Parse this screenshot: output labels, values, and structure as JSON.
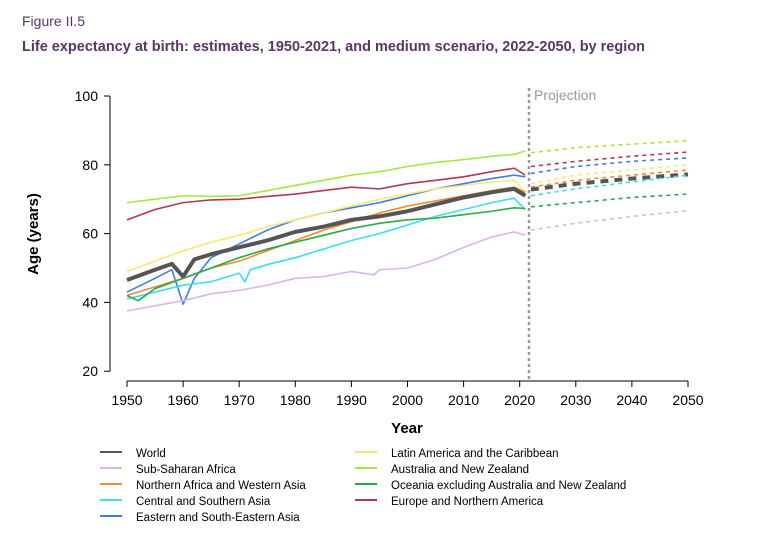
{
  "figure_label": "Figure II.5",
  "chart_data": {
    "type": "line",
    "title": "Life expectancy at birth: estimates, 1950-2021, and medium scenario, 2022-2050, by region",
    "xlabel": "Year",
    "ylabel": "Age (years)",
    "xlim": [
      1950,
      2050
    ],
    "ylim": [
      20,
      100
    ],
    "xticks": [
      1950,
      1960,
      1970,
      1980,
      1990,
      2000,
      2010,
      2020,
      2030,
      2040,
      2050
    ],
    "yticks": [
      20,
      40,
      60,
      80,
      100
    ],
    "projection_start": 2022,
    "projection_label": "Projection",
    "legend_position": "bottom",
    "series": [
      {
        "name": "World",
        "color": "#555555",
        "est": [
          [
            1950,
            46.5
          ],
          [
            1955,
            49.5
          ],
          [
            1958,
            51.2
          ],
          [
            1960,
            47.5
          ],
          [
            1962,
            52.5
          ],
          [
            1965,
            54
          ],
          [
            1970,
            56
          ],
          [
            1975,
            58
          ],
          [
            1980,
            60.5
          ],
          [
            1985,
            62
          ],
          [
            1990,
            64
          ],
          [
            1995,
            65
          ],
          [
            2000,
            66.5
          ],
          [
            2005,
            68.5
          ],
          [
            2010,
            70.5
          ],
          [
            2015,
            72
          ],
          [
            2019,
            73
          ],
          [
            2021,
            71
          ]
        ],
        "proj": [
          [
            2022,
            72.8
          ],
          [
            2030,
            74.5
          ],
          [
            2040,
            76
          ],
          [
            2050,
            77.2
          ]
        ]
      },
      {
        "name": "Sub-Saharan Africa",
        "color": "#dcb4f0",
        "est": [
          [
            1950,
            37.5
          ],
          [
            1955,
            39
          ],
          [
            1960,
            40.5
          ],
          [
            1965,
            42.5
          ],
          [
            1970,
            43.5
          ],
          [
            1975,
            45
          ],
          [
            1980,
            47
          ],
          [
            1985,
            47.5
          ],
          [
            1990,
            49
          ],
          [
            1994,
            48
          ],
          [
            1995,
            49.5
          ],
          [
            2000,
            50
          ],
          [
            2005,
            52.5
          ],
          [
            2010,
            56
          ],
          [
            2015,
            59
          ],
          [
            2019,
            60.5
          ],
          [
            2021,
            59.5
          ]
        ],
        "proj": [
          [
            2022,
            61
          ],
          [
            2030,
            63
          ],
          [
            2040,
            65
          ],
          [
            2050,
            66.7
          ]
        ]
      },
      {
        "name": "Northern Africa and Western Asia",
        "color": "#f08c30",
        "est": [
          [
            1950,
            42
          ],
          [
            1955,
            44.5
          ],
          [
            1960,
            47
          ],
          [
            1965,
            50
          ],
          [
            1970,
            52
          ],
          [
            1975,
            55
          ],
          [
            1980,
            58
          ],
          [
            1985,
            61
          ],
          [
            1990,
            63.5
          ],
          [
            1995,
            66
          ],
          [
            2000,
            68
          ],
          [
            2005,
            69.5
          ],
          [
            2010,
            71
          ],
          [
            2015,
            72.5
          ],
          [
            2019,
            73.5
          ],
          [
            2021,
            72
          ]
        ],
        "proj": [
          [
            2022,
            73.5
          ],
          [
            2030,
            75.5
          ],
          [
            2040,
            77
          ],
          [
            2050,
            78.5
          ]
        ]
      },
      {
        "name": "Central and Southern Asia",
        "color": "#3ddcf0",
        "est": [
          [
            1950,
            41
          ],
          [
            1955,
            43
          ],
          [
            1960,
            45
          ],
          [
            1965,
            46
          ],
          [
            1970,
            48.5
          ],
          [
            1971,
            46
          ],
          [
            1972,
            49.5
          ],
          [
            1975,
            51
          ],
          [
            1980,
            53
          ],
          [
            1985,
            55.5
          ],
          [
            1990,
            58
          ],
          [
            1995,
            60
          ],
          [
            2000,
            62.5
          ],
          [
            2005,
            65
          ],
          [
            2010,
            67
          ],
          [
            2015,
            69
          ],
          [
            2019,
            70.3
          ],
          [
            2021,
            67
          ]
        ],
        "proj": [
          [
            2022,
            71
          ],
          [
            2030,
            73
          ],
          [
            2040,
            75
          ],
          [
            2050,
            77
          ]
        ]
      },
      {
        "name": "Eastern and South-Eastern Asia",
        "color": "#3c7fe0",
        "est": [
          [
            1950,
            43
          ],
          [
            1955,
            47
          ],
          [
            1958,
            49.5
          ],
          [
            1960,
            39.5
          ],
          [
            1962,
            47
          ],
          [
            1965,
            53
          ],
          [
            1970,
            57
          ],
          [
            1975,
            61
          ],
          [
            1980,
            64
          ],
          [
            1985,
            66
          ],
          [
            1990,
            67.5
          ],
          [
            1995,
            69
          ],
          [
            2000,
            71
          ],
          [
            2005,
            73
          ],
          [
            2010,
            74.5
          ],
          [
            2015,
            76
          ],
          [
            2019,
            77
          ],
          [
            2021,
            76.5
          ]
        ],
        "proj": [
          [
            2022,
            77.5
          ],
          [
            2030,
            79.5
          ],
          [
            2040,
            81
          ],
          [
            2050,
            82
          ]
        ]
      },
      {
        "name": "Latin America and the Caribbean",
        "color": "#f8e87a",
        "est": [
          [
            1950,
            49
          ],
          [
            1955,
            52
          ],
          [
            1960,
            55
          ],
          [
            1965,
            57.5
          ],
          [
            1970,
            59.5
          ],
          [
            1975,
            62
          ],
          [
            1980,
            64
          ],
          [
            1985,
            66
          ],
          [
            1990,
            68
          ],
          [
            1995,
            70
          ],
          [
            2000,
            71.5
          ],
          [
            2005,
            73
          ],
          [
            2010,
            74
          ],
          [
            2015,
            75
          ],
          [
            2019,
            75.5
          ],
          [
            2021,
            72
          ]
        ],
        "proj": [
          [
            2022,
            74.5
          ],
          [
            2030,
            77
          ],
          [
            2040,
            78.5
          ],
          [
            2050,
            80
          ]
        ]
      },
      {
        "name": "Australia and New Zealand",
        "color": "#a8e63c",
        "est": [
          [
            1950,
            69
          ],
          [
            1955,
            70
          ],
          [
            1960,
            71
          ],
          [
            1965,
            70.8
          ],
          [
            1970,
            71
          ],
          [
            1975,
            72.5
          ],
          [
            1980,
            74
          ],
          [
            1985,
            75.5
          ],
          [
            1990,
            77
          ],
          [
            1995,
            78
          ],
          [
            2000,
            79.5
          ],
          [
            2005,
            80.7
          ],
          [
            2010,
            81.5
          ],
          [
            2015,
            82.5
          ],
          [
            2019,
            83
          ],
          [
            2021,
            84
          ]
        ],
        "proj": [
          [
            2022,
            83.5
          ],
          [
            2030,
            85
          ],
          [
            2040,
            86
          ],
          [
            2050,
            87
          ]
        ]
      },
      {
        "name": "Oceania excluding Australia and New Zealand",
        "color": "#2ca84a",
        "est": [
          [
            1950,
            42
          ],
          [
            1952,
            40.5
          ],
          [
            1955,
            44
          ],
          [
            1960,
            47
          ],
          [
            1965,
            50
          ],
          [
            1970,
            53
          ],
          [
            1975,
            55.5
          ],
          [
            1980,
            57.5
          ],
          [
            1985,
            59.5
          ],
          [
            1990,
            61.5
          ],
          [
            1995,
            63
          ],
          [
            2000,
            64
          ],
          [
            2005,
            64.5
          ],
          [
            2010,
            65.5
          ],
          [
            2015,
            66.5
          ],
          [
            2019,
            67.5
          ],
          [
            2021,
            67.3
          ]
        ],
        "proj": [
          [
            2022,
            67.8
          ],
          [
            2030,
            69
          ],
          [
            2040,
            70.5
          ],
          [
            2050,
            71.5
          ]
        ]
      },
      {
        "name": "Europe and Northern America",
        "color": "#b03850",
        "est": [
          [
            1950,
            64
          ],
          [
            1955,
            67
          ],
          [
            1960,
            69
          ],
          [
            1965,
            69.8
          ],
          [
            1970,
            70
          ],
          [
            1975,
            70.8
          ],
          [
            1980,
            71.5
          ],
          [
            1985,
            72.5
          ],
          [
            1990,
            73.5
          ],
          [
            1995,
            73
          ],
          [
            2000,
            74.5
          ],
          [
            2005,
            75.5
          ],
          [
            2010,
            76.5
          ],
          [
            2015,
            78
          ],
          [
            2019,
            79
          ],
          [
            2021,
            77
          ]
        ],
        "proj": [
          [
            2022,
            79.5
          ],
          [
            2030,
            81
          ],
          [
            2040,
            82.5
          ],
          [
            2050,
            83.7
          ]
        ]
      }
    ]
  }
}
